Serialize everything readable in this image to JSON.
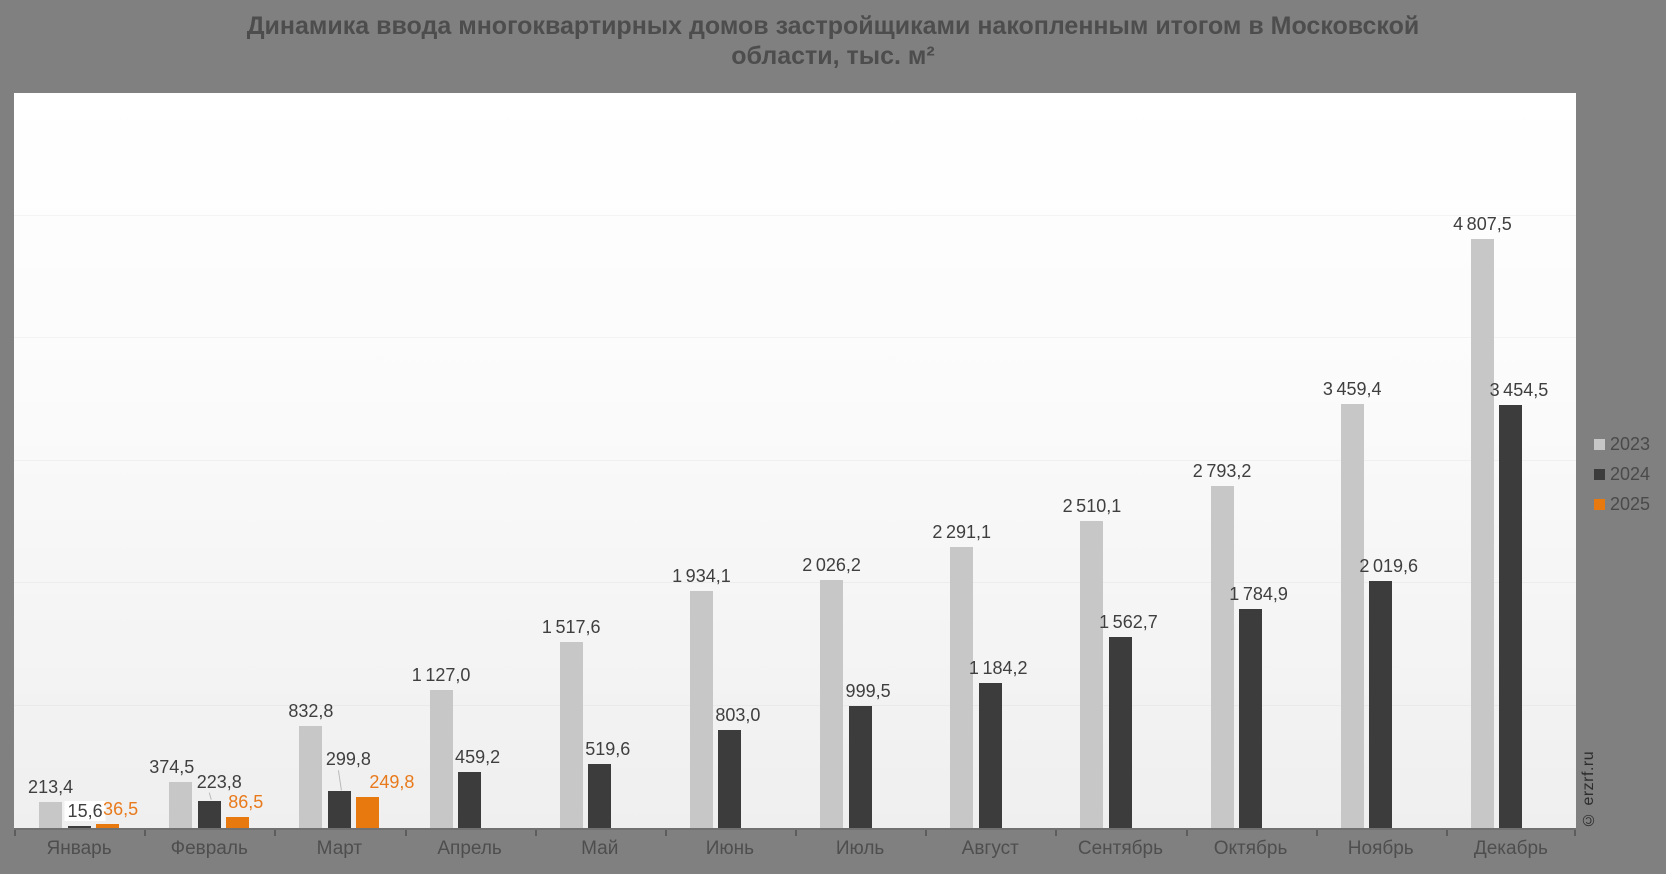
{
  "page": {
    "background": "#808080",
    "plot_background_top": "#ffffff",
    "plot_background_bottom": "#efefef"
  },
  "title": {
    "lines": [
      "Динамика ввода многоквартирных домов застройщиками накопленным итогом в Московской",
      "области, тыс. м²"
    ]
  },
  "watermark": "© erzrf.ru",
  "chart_data": {
    "type": "bar",
    "title": "Динамика ввода многоквартирных домов застройщиками накопленным итогом в Московской области, тыс. м²",
    "unit": "тыс. м²",
    "categories": [
      "Январь",
      "Февраль",
      "Март",
      "Апрель",
      "Май",
      "Июнь",
      "Июль",
      "Август",
      "Сентябрь",
      "Октябрь",
      "Ноябрь",
      "Декабрь"
    ],
    "series": [
      {
        "name": "2023",
        "color": "#c7c7c7",
        "label_color": "#3f3f3f",
        "values": [
          213.4,
          374.5,
          832.8,
          1127.0,
          1517.6,
          1934.1,
          2026.2,
          2291.1,
          2510.1,
          2793.2,
          3459.4,
          4807.5
        ]
      },
      {
        "name": "2024",
        "color": "#3c3c3c",
        "label_color": "#3f3f3f",
        "values": [
          15.6,
          223.8,
          299.8,
          459.2,
          519.6,
          803.0,
          999.5,
          1184.2,
          1562.7,
          1784.9,
          2019.6,
          3454.5
        ]
      },
      {
        "name": "2025",
        "color": "#e8790f",
        "label_color": "#e87a1c",
        "values": [
          36.5,
          86.5,
          249.8,
          null,
          null,
          null,
          null,
          null,
          null,
          null,
          null,
          null
        ]
      }
    ],
    "ylim": [
      0,
      6000
    ],
    "y_axis_visible": false,
    "grid": "faint-horizontal-1000",
    "legend_position": "right",
    "decimal_separator": ",",
    "thousands_separator": " ",
    "label_offsets": {
      "0-1": {
        "dx": 6,
        "dy": 0,
        "bg": true
      },
      "0-2": {
        "dx": 13,
        "dy": 0
      },
      "1-0": {
        "dx": -9,
        "dy": 0
      },
      "1-1": {
        "dx": 10,
        "dy": 4,
        "leader": true
      },
      "1-2": {
        "dx": 8,
        "dy": 0
      },
      "2-1": {
        "dx": 9,
        "dy": 17,
        "leader": true
      },
      "2-2": {
        "dx": 24,
        "dy": 0
      }
    }
  }
}
